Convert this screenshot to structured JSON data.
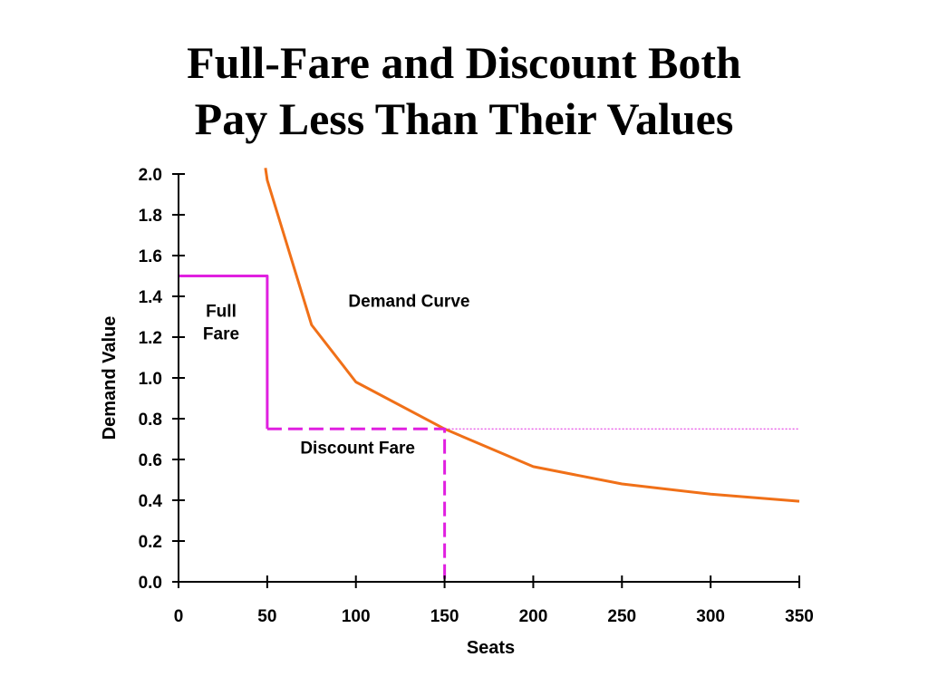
{
  "title": {
    "line1": "Full-Fare and Discount Both",
    "line2": "Pay Less Than Their Values"
  },
  "chart_data": {
    "type": "line",
    "xlabel": "Seats",
    "ylabel": "Demand Value",
    "xlim": [
      0,
      350
    ],
    "ylim": [
      0,
      2.0
    ],
    "x_ticks": [
      "0",
      "50",
      "100",
      "150",
      "200",
      "250",
      "300",
      "350"
    ],
    "y_ticks": [
      "0.0",
      "0.2",
      "0.4",
      "0.6",
      "0.8",
      "1.0",
      "1.2",
      "1.4",
      "1.6",
      "1.8",
      "2.0"
    ],
    "grid": false,
    "series": [
      {
        "name": "Demand Curve",
        "color": "#f07018",
        "style": "solid",
        "points": [
          [
            49,
            2.03
          ],
          [
            50,
            1.97
          ],
          [
            75,
            1.26
          ],
          [
            100,
            0.98
          ],
          [
            150,
            0.75
          ],
          [
            200,
            0.565
          ],
          [
            250,
            0.48
          ],
          [
            300,
            0.43
          ],
          [
            350,
            0.395
          ]
        ]
      },
      {
        "name": "Full Fare",
        "color": "#e020e0",
        "style": "solid",
        "points": [
          [
            0,
            1.5
          ],
          [
            50,
            1.5
          ],
          [
            50,
            0.75
          ]
        ]
      },
      {
        "name": "Discount Fare",
        "color": "#e020e0",
        "style": "dashed",
        "points": [
          [
            50,
            0.75
          ],
          [
            150,
            0.75
          ],
          [
            150,
            0.0
          ]
        ]
      },
      {
        "name": "",
        "color": "#e020e0",
        "style": "dotted",
        "points": [
          [
            150,
            0.75
          ],
          [
            350,
            0.75
          ]
        ]
      }
    ],
    "annotations": [
      {
        "lines": [
          "Full",
          "Fare"
        ],
        "x": 24,
        "y": 1.3
      },
      {
        "lines": [
          "Demand Curve"
        ],
        "x": 130,
        "y": 1.35
      },
      {
        "lines": [
          "Discount Fare"
        ],
        "x": 101,
        "y": 0.63
      }
    ]
  }
}
